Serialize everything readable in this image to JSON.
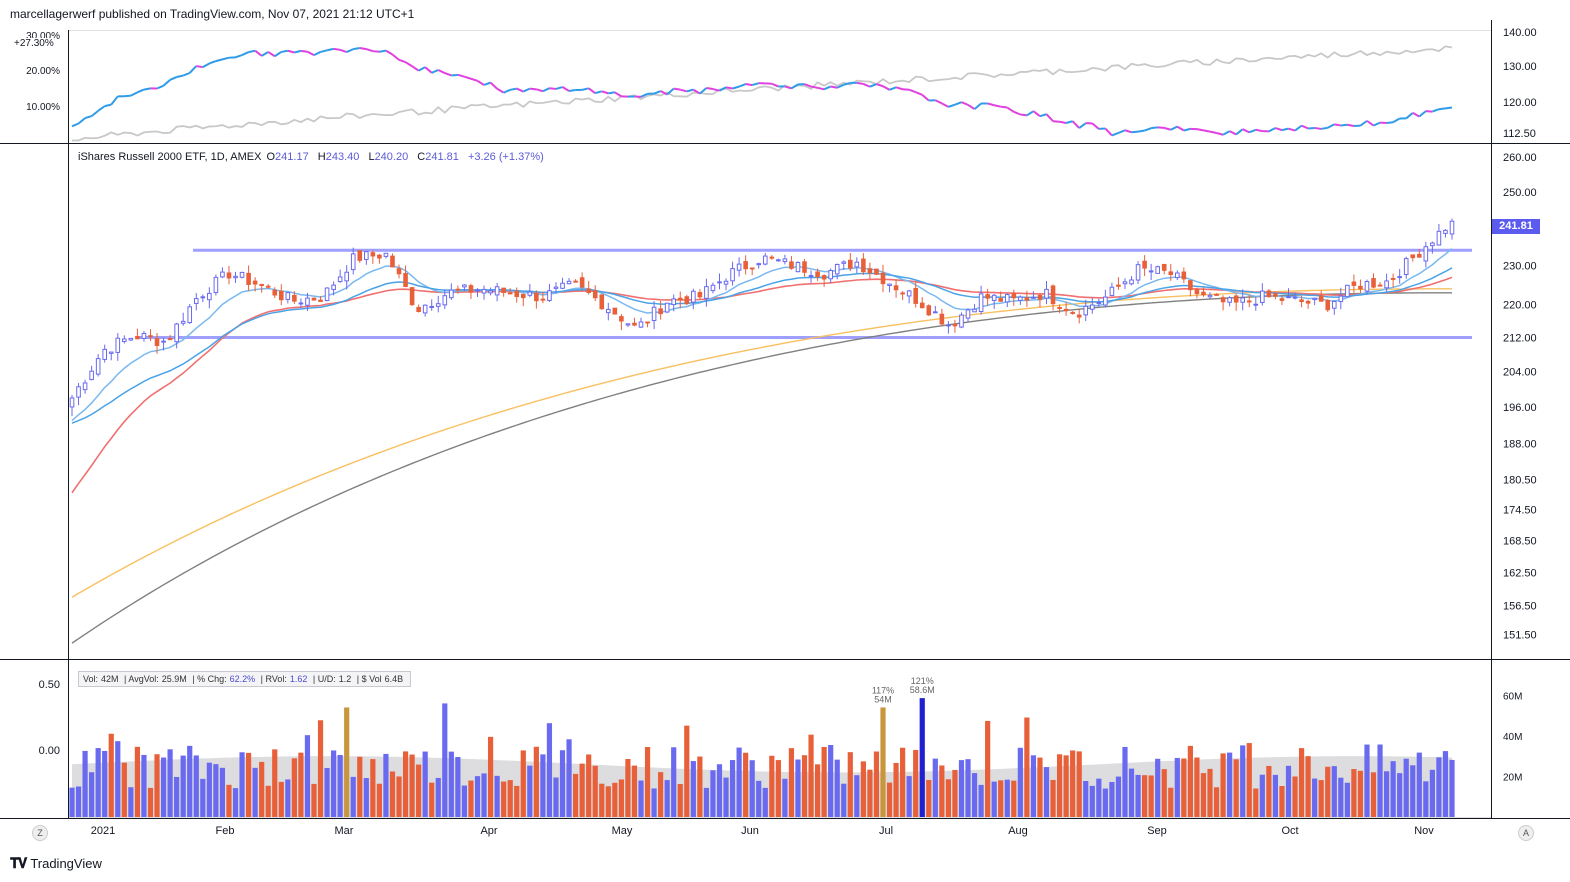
{
  "header": {
    "publisher_line": "marcellagerwerf published on TradingView.com, Nov 07, 2021 21:12 UTC+1"
  },
  "brand": {
    "name": "TradingView",
    "logo_icon": "tradingview-logo-icon"
  },
  "legend": {
    "symbol_line": "iShares Russell 2000 ETF, 1D, AMEX",
    "o_label": "O",
    "o_value": "241.17",
    "h_label": "H",
    "h_value": "243.40",
    "l_label": "L",
    "l_value": "240.20",
    "c_label": "C",
    "c_value": "241.81",
    "change": "+3.26 (+1.37%)"
  },
  "last_price_tag": "241.81",
  "rs_pane": {
    "last_pct_tag": "+27.30%",
    "left_ticks": [
      "30.00%",
      "20.00%",
      "10.00%"
    ],
    "right_ticks": [
      "140.00",
      "130.00",
      "120.00",
      "112.50"
    ]
  },
  "price_axis_ticks": [
    "260.00",
    "250.00",
    "230.00",
    "220.00",
    "212.00",
    "204.00",
    "196.00",
    "188.00",
    "180.50",
    "174.50",
    "168.50",
    "162.50",
    "156.50",
    "151.50"
  ],
  "volume_box": {
    "vol_label": "Vol:",
    "vol_value": "42M",
    "avgvol_label": "AvgVol:",
    "avgvol_value": "25.9M",
    "chg_label": "% Chg:",
    "chg_value": "62.2%",
    "rvol_label": "RVol:",
    "rvol_value": "1.62",
    "ud_label": "U/D:",
    "ud_value": "1.2",
    "dvol_label": "$ Vol",
    "dvol_value": "6.4B"
  },
  "volume_pane": {
    "left_ticks": [
      "0.50",
      "0.00"
    ],
    "right_ticks": [
      "60M",
      "40M",
      "20M"
    ],
    "annotations": [
      {
        "pct": "117%",
        "vol": "54M"
      },
      {
        "pct": "121%",
        "vol": "58.6M"
      }
    ]
  },
  "x_axis_labels": [
    "2021",
    "Feb",
    "Mar",
    "Apr",
    "May",
    "Jun",
    "Jul",
    "Aug",
    "Sep",
    "Oct",
    "Nov"
  ],
  "corner_buttons": {
    "left": "Z",
    "right": "A"
  },
  "colors": {
    "up": "#6a6af0",
    "down": "#e8603a",
    "ma_fast": "#7ab8f0",
    "ma_mid": "#4aa3e6",
    "ma_50": "#f07070",
    "ma_100": "#f8c060",
    "ma_200": "#808080",
    "band": "#8080ff",
    "rs_line": "#2e9be8",
    "rs_down": "#e040e0",
    "rs_bench": "#c8c8c8"
  },
  "chart_data": {
    "type": "candlestick",
    "title": "iShares Russell 2000 ETF, 1D, AMEX",
    "x_dates": [
      "2021-01-04",
      "2021-01-11",
      "2021-01-19",
      "2021-01-25",
      "2021-02-01",
      "2021-02-08",
      "2021-02-16",
      "2021-02-22",
      "2021-03-01",
      "2021-03-08",
      "2021-03-15",
      "2021-03-22",
      "2021-03-29",
      "2021-04-05",
      "2021-04-12",
      "2021-04-19",
      "2021-04-26",
      "2021-05-03",
      "2021-05-10",
      "2021-05-17",
      "2021-05-24",
      "2021-06-01",
      "2021-06-07",
      "2021-06-14",
      "2021-06-21",
      "2021-06-28",
      "2021-07-06",
      "2021-07-12",
      "2021-07-19",
      "2021-07-26",
      "2021-08-02",
      "2021-08-09",
      "2021-08-16",
      "2021-08-23",
      "2021-08-30",
      "2021-09-07",
      "2021-09-13",
      "2021-09-20",
      "2021-09-27",
      "2021-10-04",
      "2021-10-11",
      "2021-10-18",
      "2021-10-25",
      "2021-11-01",
      "2021-11-05"
    ],
    "weekly_close": [
      198.0,
      209.0,
      212.5,
      211.0,
      222.0,
      228.0,
      225.0,
      221.0,
      222.0,
      232.0,
      233.0,
      219.0,
      223.0,
      224.0,
      223.0,
      222.0,
      225.0,
      220.0,
      214.0,
      221.0,
      222.0,
      228.0,
      232.0,
      230.0,
      228.0,
      231.0,
      226.0,
      221.0,
      215.0,
      222.0,
      221.0,
      223.0,
      218.0,
      222.0,
      229.0,
      228.0,
      222.0,
      220.0,
      222.0,
      221.0,
      220.0,
      225.0,
      226.0,
      234.0,
      241.81
    ],
    "horizontal_levels": [
      234.0,
      212.0
    ],
    "price_range": [
      148.0,
      263.0
    ],
    "volume_range_m": [
      0,
      70
    ],
    "series": [
      {
        "name": "iShares Russell 2000 ETF, 1D, AMEX",
        "type": "candlestick"
      },
      {
        "name": "MA fast"
      },
      {
        "name": "MA 21"
      },
      {
        "name": "MA 50"
      },
      {
        "name": "MA 100"
      },
      {
        "name": "MA 200"
      }
    ],
    "ma_50_endpoints": [
      176.0,
      225.0
    ],
    "ma_100_endpoints": [
      158.0,
      224.0
    ],
    "ma_200_endpoints": [
      150.0,
      223.0
    ],
    "rs_pct_range": [
      4,
      31
    ]
  }
}
